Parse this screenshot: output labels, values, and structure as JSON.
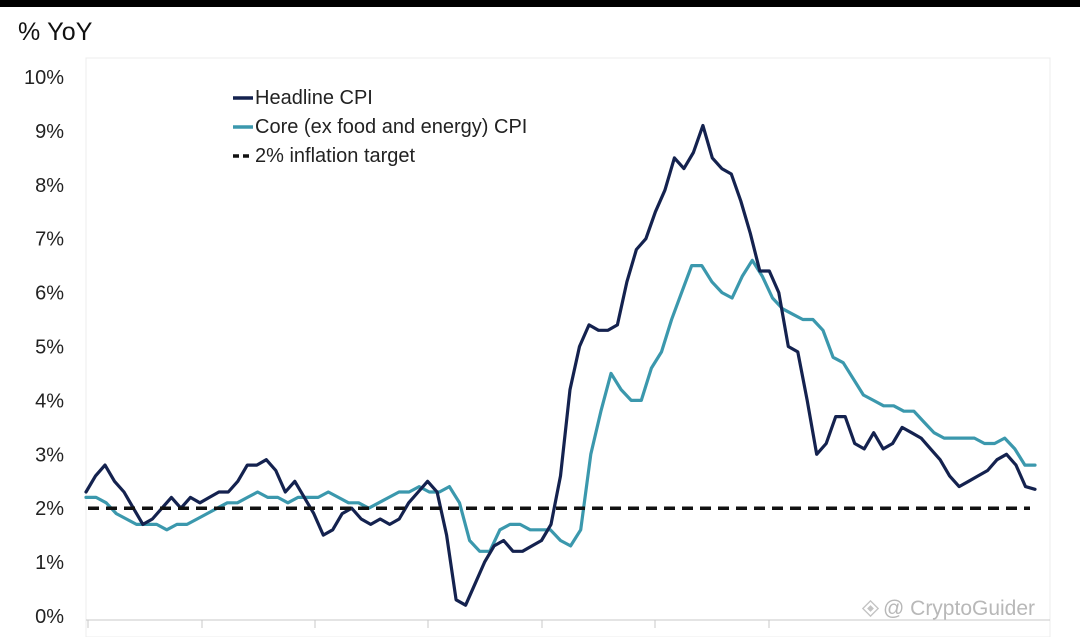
{
  "chart_data": {
    "type": "line",
    "title": "% YoY",
    "xlabel": "",
    "ylabel": "% YoY",
    "ylim": [
      0,
      10
    ],
    "yticks": [
      0,
      1,
      2,
      3,
      4,
      5,
      6,
      7,
      8,
      9,
      10
    ],
    "ytick_labels": [
      "0%",
      "1%",
      "2%",
      "3%",
      "4%",
      "5%",
      "6%",
      "7%",
      "8%",
      "9%",
      "10%"
    ],
    "x_count": 114,
    "grid": false,
    "legend_position": "top-left",
    "colors": {
      "headline": "#14224f",
      "core": "#3b98ad",
      "target": "#111111"
    },
    "series": [
      {
        "name": "Headline CPI",
        "values": [
          2.3,
          2.6,
          2.8,
          2.5,
          2.3,
          2.0,
          1.7,
          1.8,
          2.0,
          2.2,
          2.0,
          2.2,
          2.1,
          2.2,
          2.3,
          2.3,
          2.5,
          2.8,
          2.8,
          2.9,
          2.7,
          2.3,
          2.5,
          2.2,
          1.9,
          1.5,
          1.6,
          1.9,
          2.0,
          1.8,
          1.7,
          1.8,
          1.7,
          1.8,
          2.1,
          2.3,
          2.5,
          2.3,
          1.5,
          0.3,
          0.2,
          0.6,
          1.0,
          1.3,
          1.4,
          1.2,
          1.2,
          1.3,
          1.4,
          1.7,
          2.6,
          4.2,
          5.0,
          5.4,
          5.3,
          5.3,
          5.4,
          6.2,
          6.8,
          7.0,
          7.5,
          7.9,
          8.5,
          8.3,
          8.6,
          9.1,
          8.5,
          8.3,
          8.2,
          7.7,
          7.1,
          6.4,
          6.4,
          6.0,
          5.0,
          4.9,
          4.0,
          3.0,
          3.2,
          3.7,
          3.7,
          3.2,
          3.1,
          3.4,
          3.1,
          3.2,
          3.5,
          3.4,
          3.3,
          3.1,
          2.9,
          2.6,
          2.4,
          2.5,
          2.6,
          2.7,
          2.9,
          3.0,
          2.8,
          2.4,
          2.35
        ],
        "x_start": 0
      },
      {
        "name": "Core (ex food and energy) CPI",
        "values": [
          2.2,
          2.2,
          2.1,
          1.9,
          1.8,
          1.7,
          1.7,
          1.7,
          1.6,
          1.7,
          1.7,
          1.8,
          1.9,
          2.0,
          2.1,
          2.1,
          2.2,
          2.3,
          2.2,
          2.2,
          2.1,
          2.2,
          2.2,
          2.2,
          2.3,
          2.2,
          2.1,
          2.1,
          2.0,
          2.1,
          2.2,
          2.3,
          2.3,
          2.4,
          2.3,
          2.3,
          2.4,
          2.1,
          1.4,
          1.2,
          1.2,
          1.6,
          1.7,
          1.7,
          1.6,
          1.6,
          1.6,
          1.4,
          1.3,
          1.6,
          3.0,
          3.8,
          4.5,
          4.2,
          4.0,
          4.0,
          4.6,
          4.9,
          5.5,
          6.0,
          6.5,
          6.5,
          6.2,
          6.0,
          5.9,
          6.3,
          6.6,
          6.3,
          5.9,
          5.7,
          5.6,
          5.5,
          5.5,
          5.3,
          4.8,
          4.7,
          4.4,
          4.1,
          4.0,
          3.9,
          3.9,
          3.8,
          3.8,
          3.6,
          3.4,
          3.3,
          3.3,
          3.3,
          3.3,
          3.2,
          3.2,
          3.3,
          3.1,
          2.8,
          2.8
        ],
        "x_start": 0
      },
      {
        "name": "2% inflation target",
        "values": [
          2.0,
          2.0
        ],
        "x_start": 0
      }
    ]
  },
  "watermark": {
    "text": "@ CryptoGuider"
  }
}
